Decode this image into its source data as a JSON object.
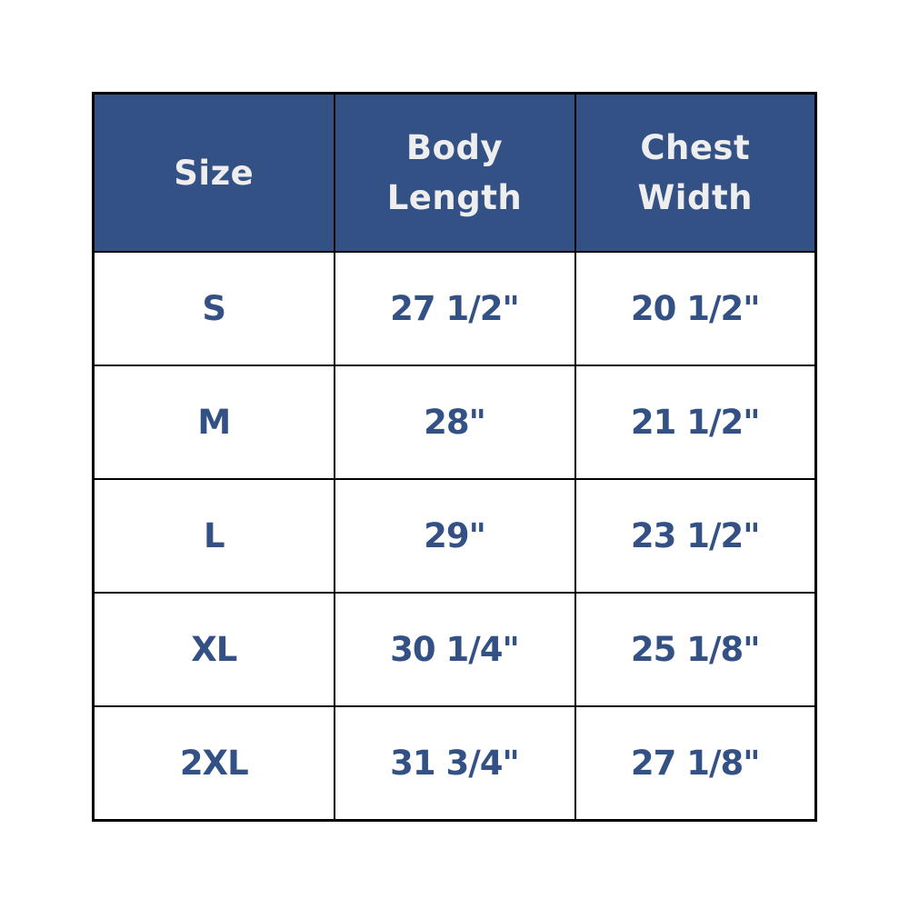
{
  "table": {
    "headers": [
      [
        "Size"
      ],
      [
        "Body",
        "Length"
      ],
      [
        "Chest",
        "Width"
      ]
    ],
    "rows": [
      [
        "S",
        "27 1/2\"",
        "20 1/2\""
      ],
      [
        "M",
        "28\"",
        "21 1/2\""
      ],
      [
        "L",
        "29\"",
        "23 1/2\""
      ],
      [
        "XL",
        "30 1/4\"",
        "25 1/8\""
      ],
      [
        "2XL",
        "31 3/4\"",
        "27 1/8\""
      ]
    ]
  },
  "colors": {
    "header_bg": "#335185",
    "header_text": "#eeeeee",
    "cell_text": "#335185",
    "border": "#000000"
  }
}
